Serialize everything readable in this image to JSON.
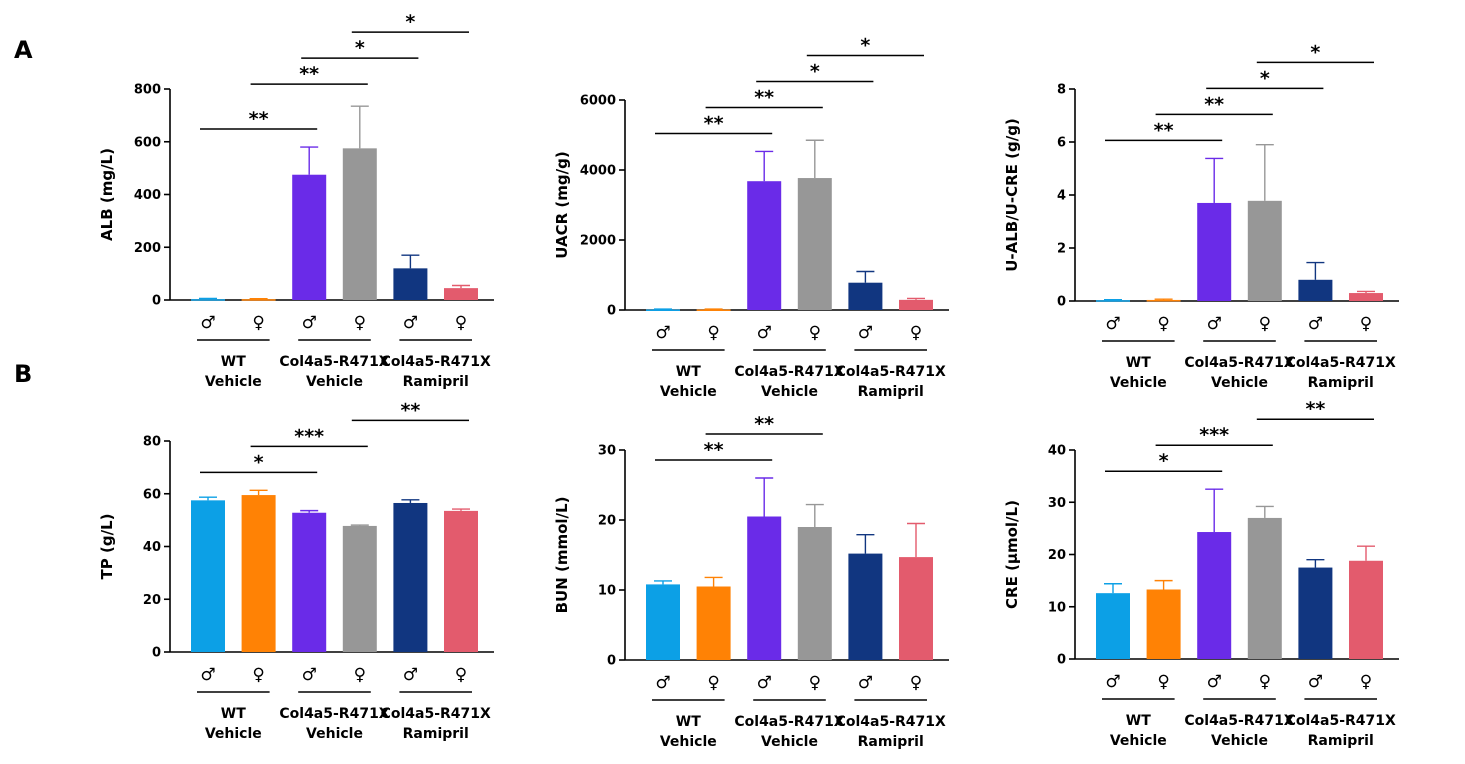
{
  "panels": {
    "a": "A",
    "b": "B"
  },
  "groups": [
    {
      "sex": "♂",
      "color": "#0ca0e6"
    },
    {
      "sex": "♀",
      "color": "#ff8205"
    },
    {
      "sex": "♂",
      "color": "#6a2be8"
    },
    {
      "sex": "♀",
      "color": "#979797"
    },
    {
      "sex": "♂",
      "color": "#113680"
    },
    {
      "sex": "♀",
      "color": "#e35b6d"
    }
  ],
  "group_labels": [
    [
      "WT",
      "Vehicle"
    ],
    [
      "Col4a5-R471X",
      "Vehicle"
    ],
    [
      "Col4a5-R471X",
      "Ramipril"
    ]
  ],
  "chart_data": [
    {
      "type": "bar",
      "ylabel": "ALB (mg/L)",
      "ylim": [
        0,
        800
      ],
      "ticks": [
        0,
        200,
        400,
        600,
        800
      ],
      "values": [
        3,
        3,
        475,
        575,
        120,
        45
      ],
      "errors": [
        3,
        2,
        105,
        160,
        50,
        10
      ],
      "significance": [
        {
          "from": 0,
          "to": 2,
          "label": "**"
        },
        {
          "from": 1,
          "to": 3,
          "label": "**"
        },
        {
          "from": 2,
          "to": 4,
          "label": "*"
        },
        {
          "from": 3,
          "to": 5,
          "label": "*"
        }
      ]
    },
    {
      "type": "bar",
      "ylabel": "UACR (mg/g)",
      "ylim": [
        0,
        6000
      ],
      "ticks": [
        0,
        2000,
        4000,
        6000
      ],
      "values": [
        15,
        15,
        3680,
        3770,
        780,
        290
      ],
      "errors": [
        10,
        10,
        850,
        1080,
        320,
        40
      ],
      "significance": [
        {
          "from": 0,
          "to": 2,
          "label": "**"
        },
        {
          "from": 1,
          "to": 3,
          "label": "**"
        },
        {
          "from": 2,
          "to": 4,
          "label": "*"
        },
        {
          "from": 3,
          "to": 5,
          "label": "*"
        }
      ]
    },
    {
      "type": "bar",
      "ylabel": "U-ALB/U-CRE (g/g)",
      "ylim": [
        0,
        8
      ],
      "ticks": [
        0,
        2,
        4,
        6,
        8
      ],
      "values": [
        0.03,
        0.04,
        3.7,
        3.78,
        0.8,
        0.3
      ],
      "errors": [
        0.02,
        0.03,
        1.68,
        2.12,
        0.65,
        0.06
      ],
      "significance": [
        {
          "from": 0,
          "to": 2,
          "label": "**"
        },
        {
          "from": 1,
          "to": 3,
          "label": "**"
        },
        {
          "from": 2,
          "to": 4,
          "label": "*"
        },
        {
          "from": 3,
          "to": 5,
          "label": "*"
        }
      ]
    },
    {
      "type": "bar",
      "ylabel": "TP (g/L)",
      "ylim": [
        0,
        80
      ],
      "ticks": [
        0,
        20,
        40,
        60,
        80
      ],
      "values": [
        57.5,
        59.5,
        52.8,
        47.8,
        56.5,
        53.5
      ],
      "errors": [
        1.2,
        1.8,
        0.8,
        0.3,
        1.2,
        0.7
      ],
      "significance": [
        {
          "from": 0,
          "to": 2,
          "label": "*"
        },
        {
          "from": 1,
          "to": 3,
          "label": "***"
        },
        {
          "from": 3,
          "to": 5,
          "label": "**"
        }
      ]
    },
    {
      "type": "bar",
      "ylabel": "BUN (mmol/L)",
      "ylim": [
        0,
        30
      ],
      "ticks": [
        0,
        10,
        20,
        30
      ],
      "values": [
        10.8,
        10.5,
        20.5,
        19,
        15.2,
        14.7
      ],
      "errors": [
        0.5,
        1.3,
        5.5,
        3.2,
        2.7,
        4.8
      ],
      "significance": [
        {
          "from": 0,
          "to": 2,
          "label": "**"
        },
        {
          "from": 1,
          "to": 3,
          "label": "**"
        }
      ]
    },
    {
      "type": "bar",
      "ylabel": "CRE (μmol/L)",
      "ylim": [
        0,
        40
      ],
      "ticks": [
        0,
        10,
        20,
        30,
        40
      ],
      "values": [
        12.6,
        13.3,
        24.3,
        27,
        17.5,
        18.8
      ],
      "errors": [
        1.8,
        1.7,
        8.2,
        2.2,
        1.5,
        2.8
      ],
      "significance": [
        {
          "from": 0,
          "to": 2,
          "label": "*"
        },
        {
          "from": 1,
          "to": 3,
          "label": "***"
        },
        {
          "from": 3,
          "to": 5,
          "label": "**"
        }
      ]
    }
  ]
}
